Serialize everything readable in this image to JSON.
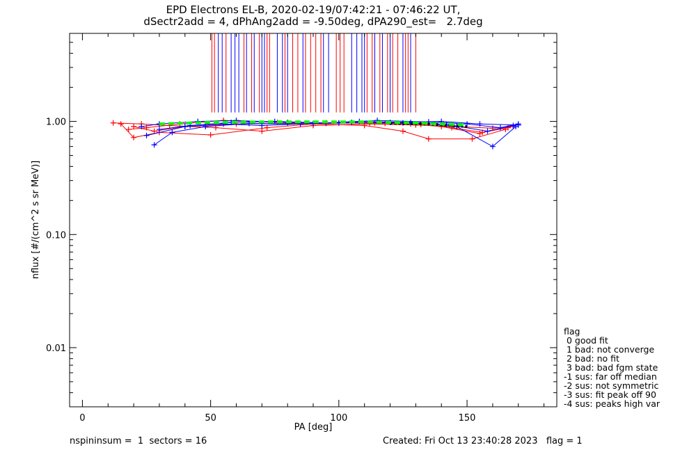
{
  "title_line1": "EPD Electrons EL-B, 2020-02-19/07:42:21 - 07:46:22 UT,",
  "title_line2": "dSectr2add = 4, dPhAng2add = -9.50deg, dPA290_est=   2.7deg",
  "footer_left": "nspininsum =  1  sectors = 16",
  "footer_right": "Created: Fri Oct 13 23:40:28 2023   flag = 1",
  "legend": {
    "title": "flag",
    "items": [
      " 0 good fit",
      " 1 bad: not converge",
      " 2 bad: no fit",
      " 3 bad: bad fgm state",
      "-1 sus: far off median",
      "-2 sus: not symmetric",
      "-3 sus: fit peak off 90",
      "-4 sus: peaks high var"
    ]
  },
  "chart_data": {
    "type": "line",
    "xlabel": "PA [deg]",
    "ylabel": "nflux [#/(cm^2 s sr MeV)]",
    "xlim": [
      -5,
      185
    ],
    "ylim": [
      0.003,
      6.0
    ],
    "yscale": "log",
    "x_ticks": [
      0,
      50,
      100,
      150
    ],
    "x_tick_labels": [
      "0",
      "50",
      "100",
      "150"
    ],
    "y_ticks": [
      1.0,
      0.1,
      0.01
    ],
    "y_tick_labels": [
      "1.00",
      "0.10",
      "0.01"
    ],
    "colors": {
      "red": "#ff0000",
      "blue": "#0000ff",
      "green": "#00ff00",
      "black": "#000000"
    },
    "series": [
      {
        "color": "#ff0000",
        "lines": [
          {
            "x": [
              12,
              23,
              34,
              52,
              70,
              90,
              112,
              130,
              146,
              160,
              168
            ],
            "y": [
              0.97,
              0.95,
              0.92,
              0.88,
              0.82,
              0.92,
              0.95,
              0.93,
              0.9,
              0.87,
              0.9
            ]
          },
          {
            "x": [
              15,
              20,
              30,
              50,
              72,
              90,
              110,
              125,
              135,
              152,
              165
            ],
            "y": [
              0.95,
              0.72,
              0.8,
              0.76,
              0.88,
              0.95,
              0.92,
              0.82,
              0.7,
              0.7,
              0.85
            ]
          },
          {
            "x": [
              18,
              25,
              38,
              55,
              76,
              95,
              114,
              128,
              140,
              155
            ],
            "y": [
              0.85,
              0.88,
              0.95,
              1.02,
              0.98,
              0.96,
              0.97,
              0.95,
              0.9,
              0.78
            ]
          },
          {
            "x": [
              20,
              28,
              40,
              60,
              80,
              100,
              118,
              132,
              144,
              156,
              166
            ],
            "y": [
              0.9,
              0.82,
              0.9,
              0.95,
              0.96,
              0.97,
              0.96,
              0.94,
              0.88,
              0.8,
              0.88
            ]
          }
        ]
      },
      {
        "color": "#0000ff",
        "lines": [
          {
            "x": [
              23,
              30,
              45,
              60,
              80,
              100,
              120,
              140,
              155,
              170
            ],
            "y": [
              0.9,
              0.95,
              1.0,
              1.02,
              0.98,
              0.97,
              0.98,
              1.0,
              0.95,
              0.93
            ]
          },
          {
            "x": [
              28,
              35,
              48,
              65,
              85,
              105,
              125,
              142,
              158,
              168
            ],
            "y": [
              0.62,
              0.8,
              0.9,
              0.96,
              0.95,
              0.98,
              0.97,
              0.94,
              0.82,
              0.92
            ]
          },
          {
            "x": [
              25,
              40,
              55,
              70,
              90,
              108,
              128,
              146,
              160,
              169
            ],
            "y": [
              0.75,
              0.9,
              0.95,
              0.92,
              0.96,
              1.0,
              0.98,
              0.9,
              0.6,
              0.9
            ]
          },
          {
            "x": [
              30,
              42,
              58,
              75,
              95,
              115,
              135,
              150,
              163,
              170
            ],
            "y": [
              0.85,
              0.92,
              0.98,
              1.0,
              0.97,
              1.02,
              0.99,
              0.95,
              0.88,
              0.95
            ]
          }
        ]
      }
    ],
    "fit_green_x": [
      30,
      50,
      70,
      90,
      110,
      130,
      150
    ],
    "fit_green_y": [
      0.95,
      0.98,
      0.99,
      0.99,
      0.99,
      0.97,
      0.93
    ],
    "fit_black_x": [
      120,
      135,
      150
    ],
    "fit_black_y": [
      0.96,
      0.95,
      0.9
    ],
    "vlines": {
      "y_bottom": 1.2,
      "red_x": [
        50.5,
        51.5,
        56,
        63,
        66,
        69,
        72,
        73,
        79,
        82,
        84,
        87,
        89,
        91,
        93,
        99,
        100.5,
        102,
        111,
        113,
        116,
        119,
        121,
        123,
        126,
        127,
        130
      ],
      "blue_x": [
        53,
        54.5,
        58,
        59.5,
        61,
        64,
        67,
        70,
        71,
        76,
        78,
        80,
        86,
        94,
        96,
        105,
        107,
        109,
        110,
        114,
        117,
        120,
        125,
        128
      ]
    }
  }
}
